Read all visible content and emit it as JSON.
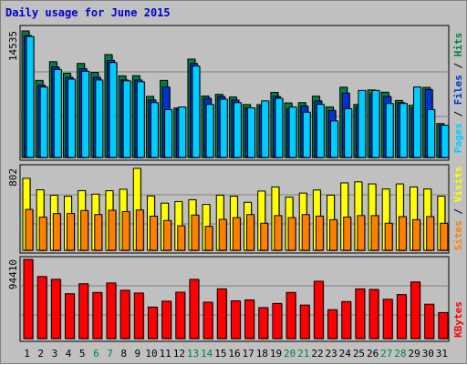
{
  "chart_data": [
    {
      "type": "bar",
      "panel": "top",
      "title": "Daily usage for June 2015",
      "categories": [
        "1",
        "2",
        "3",
        "4",
        "5",
        "6",
        "7",
        "8",
        "9",
        "10",
        "11",
        "12",
        "13",
        "14",
        "15",
        "16",
        "17",
        "18",
        "19",
        "20",
        "21",
        "22",
        "23",
        "24",
        "25",
        "26",
        "27",
        "28",
        "29",
        "30",
        "31"
      ],
      "ymax_label": "14535",
      "ylim": [
        0,
        14535
      ],
      "grid": true,
      "legend": [
        {
          "name": "Pages",
          "color": "#00ccff"
        },
        {
          "name": "Files",
          "color": "#0033cc"
        },
        {
          "name": "Hits",
          "color": "#008040"
        }
      ],
      "series": [
        {
          "name": "Hits",
          "color": "#008040",
          "values": [
            14535,
            8850,
            11000,
            9680,
            10800,
            9770,
            11820,
            9380,
            9400,
            7020,
            8850,
            5680,
            11300,
            7060,
            7250,
            6950,
            6080,
            6070,
            7480,
            6270,
            6300,
            7040,
            5810,
            8070,
            6090,
            7760,
            7500,
            6550,
            6000,
            8050,
            3900
          ]
        },
        {
          "name": "Files",
          "color": "#0033cc",
          "values": [
            14000,
            8300,
            10400,
            9200,
            10200,
            9200,
            11150,
            8900,
            8900,
            6600,
            8100,
            5560,
            10800,
            6800,
            7000,
            6600,
            5680,
            5860,
            7000,
            5600,
            5900,
            6500,
            5400,
            7400,
            5800,
            7300,
            7000,
            6300,
            5700,
            7800,
            3700
          ]
        },
        {
          "name": "Pages",
          "color": "#00ccff",
          "values": [
            13900,
            8100,
            10100,
            9000,
            9900,
            8900,
            10900,
            8800,
            8700,
            6300,
            5500,
            5800,
            10500,
            6100,
            6700,
            6300,
            5700,
            6500,
            6800,
            5800,
            5200,
            6100,
            4200,
            5600,
            7700,
            7700,
            6200,
            6200,
            8100,
            5500,
            3700
          ]
        }
      ]
    },
    {
      "type": "bar",
      "panel": "middle",
      "categories": [
        "1",
        "2",
        "3",
        "4",
        "5",
        "6",
        "7",
        "8",
        "9",
        "10",
        "11",
        "12",
        "13",
        "14",
        "15",
        "16",
        "17",
        "18",
        "19",
        "20",
        "21",
        "22",
        "23",
        "24",
        "25",
        "26",
        "27",
        "28",
        "29",
        "30",
        "31"
      ],
      "ymax_label": "802",
      "ylim": [
        0,
        802
      ],
      "grid": true,
      "legend": [
        {
          "name": "Sites",
          "color": "#ff8000"
        },
        {
          "name": "Visits",
          "color": "#ffff00"
        }
      ],
      "series": [
        {
          "name": "Visits",
          "color": "#ffff00",
          "values": [
            705,
            592,
            539,
            529,
            584,
            550,
            583,
            598,
            802,
            532,
            462,
            477,
            495,
            449,
            540,
            530,
            470,
            580,
            620,
            520,
            560,
            590,
            540,
            660,
            670,
            650,
            600,
            650,
            620,
            600,
            530
          ]
        },
        {
          "name": "Sites",
          "color": "#ff8000",
          "values": [
            400,
            325,
            359,
            360,
            390,
            350,
            392,
            379,
            395,
            334,
            292,
            240,
            345,
            235,
            303,
            320,
            350,
            265,
            340,
            320,
            350,
            335,
            300,
            325,
            340,
            340,
            265,
            330,
            300,
            330,
            265
          ]
        }
      ]
    },
    {
      "type": "bar",
      "panel": "bottom",
      "categories": [
        "1",
        "2",
        "3",
        "4",
        "5",
        "6",
        "7",
        "8",
        "9",
        "10",
        "11",
        "12",
        "13",
        "14",
        "15",
        "16",
        "17",
        "18",
        "19",
        "20",
        "21",
        "22",
        "23",
        "24",
        "25",
        "26",
        "27",
        "28",
        "29",
        "30",
        "31"
      ],
      "ymax_label": "94410",
      "ylim": [
        0,
        94410
      ],
      "grid": true,
      "legend": [
        {
          "name": "KBytes",
          "color": "#ff0000"
        }
      ],
      "series": [
        {
          "name": "KBytes",
          "color": "#ff0000",
          "values": [
            94410,
            74000,
            70700,
            53500,
            65400,
            55000,
            66300,
            57600,
            54300,
            37600,
            44600,
            55300,
            70600,
            43400,
            59300,
            45000,
            46100,
            37000,
            41900,
            55000,
            40000,
            68400,
            34500,
            44100,
            59300,
            58600,
            46900,
            52500,
            67600,
            41000,
            31000
          ]
        }
      ]
    }
  ],
  "x_axis": {
    "labels": [
      "1",
      "2",
      "3",
      "4",
      "5",
      "6",
      "7",
      "8",
      "9",
      "10",
      "11",
      "12",
      "13",
      "14",
      "15",
      "16",
      "17",
      "18",
      "19",
      "20",
      "21",
      "22",
      "23",
      "24",
      "25",
      "26",
      "27",
      "28",
      "29",
      "30",
      "31"
    ],
    "weekend_days": [
      "6",
      "7",
      "13",
      "14",
      "20",
      "21",
      "27",
      "28"
    ],
    "weekday_color": "#000000",
    "weekend_color": "#008040"
  }
}
